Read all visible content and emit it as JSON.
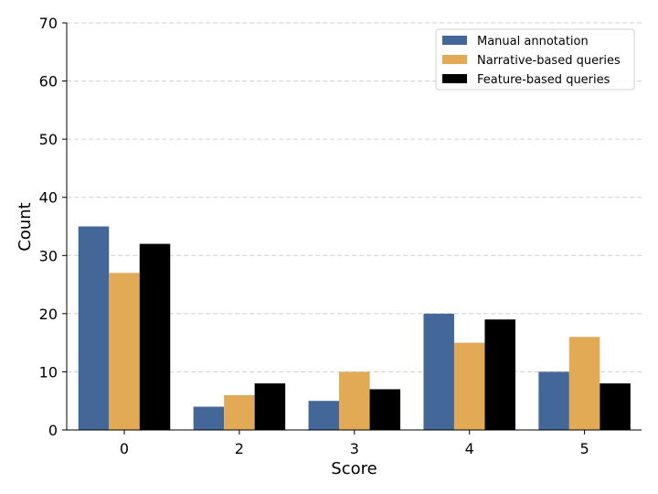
{
  "chart_data": {
    "type": "bar",
    "title": "",
    "xlabel": "Score",
    "ylabel": "Count",
    "categories": [
      "0",
      "2",
      "3",
      "4",
      "5"
    ],
    "series": [
      {
        "name": "Manual annotation",
        "values": [
          35,
          4,
          5,
          20,
          10
        ],
        "color": "#436799"
      },
      {
        "name": "Narrative-based queries",
        "values": [
          27,
          6,
          10,
          15,
          16
        ],
        "color": "#e3aa55"
      },
      {
        "name": "Feature-based queries",
        "values": [
          32,
          8,
          7,
          19,
          8
        ],
        "color": "#000000"
      }
    ],
    "ylim": [
      0,
      70
    ],
    "yticks": [
      0,
      10,
      20,
      30,
      40,
      50,
      60,
      70
    ],
    "grid": "horizontal dashed",
    "legend_position": "top-right"
  }
}
